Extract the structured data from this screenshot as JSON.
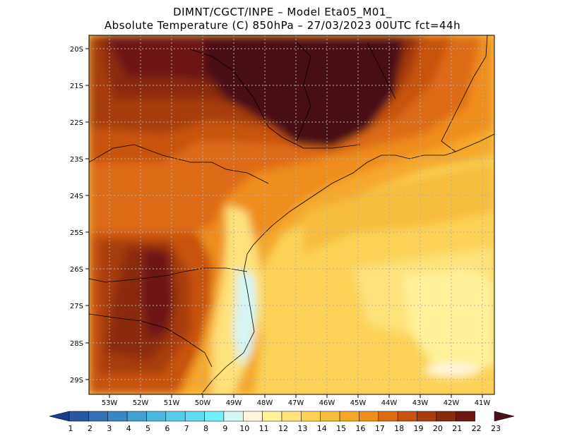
{
  "header": {
    "line1": "DIMNT/CGCT/INPE –  Model Eta05_M01_",
    "line2": "Absolute Temperature (C) 850hPa –  27/03/2023 00UTC fct=44h"
  },
  "axes": {
    "lat_labels": [
      "20S",
      "21S",
      "22S",
      "23S",
      "24S",
      "25S",
      "26S",
      "27S",
      "28S",
      "29S"
    ],
    "lon_labels": [
      "53W",
      "52W",
      "51W",
      "50W",
      "49W",
      "48W",
      "47W",
      "46W",
      "45W",
      "44W",
      "43W",
      "42W",
      "41W"
    ]
  },
  "legend": {
    "labels": [
      "1",
      "2",
      "3",
      "4",
      "5",
      "6",
      "7",
      "8",
      "9",
      "10",
      "11",
      "12",
      "13",
      "14",
      "15",
      "16",
      "17",
      "18",
      "19",
      "20",
      "21",
      "22",
      "23"
    ],
    "colors": [
      "#1f3c8c",
      "#2c56a4",
      "#3470b4",
      "#3a86c2",
      "#41a0d2",
      "#4bb8df",
      "#56cce8",
      "#62dcef",
      "#70f0f6",
      "#d5f5f5",
      "#fff5dc",
      "#fff09a",
      "#ffe27a",
      "#fcd155",
      "#f7bd3c",
      "#f4a82a",
      "#ee8e1d",
      "#dd6b14",
      "#c8520f",
      "#a73d0c",
      "#8a2a0c",
      "#6e1612",
      "#4a1018"
    ]
  },
  "map": {
    "type": "temperature-field",
    "variable": "Absolute Temperature (C) 850hPa",
    "lon_range": [
      -53.6,
      -40.6
    ],
    "lat_range": [
      -29.5,
      -19.9
    ],
    "scale_min": 1,
    "scale_max": 23
  }
}
